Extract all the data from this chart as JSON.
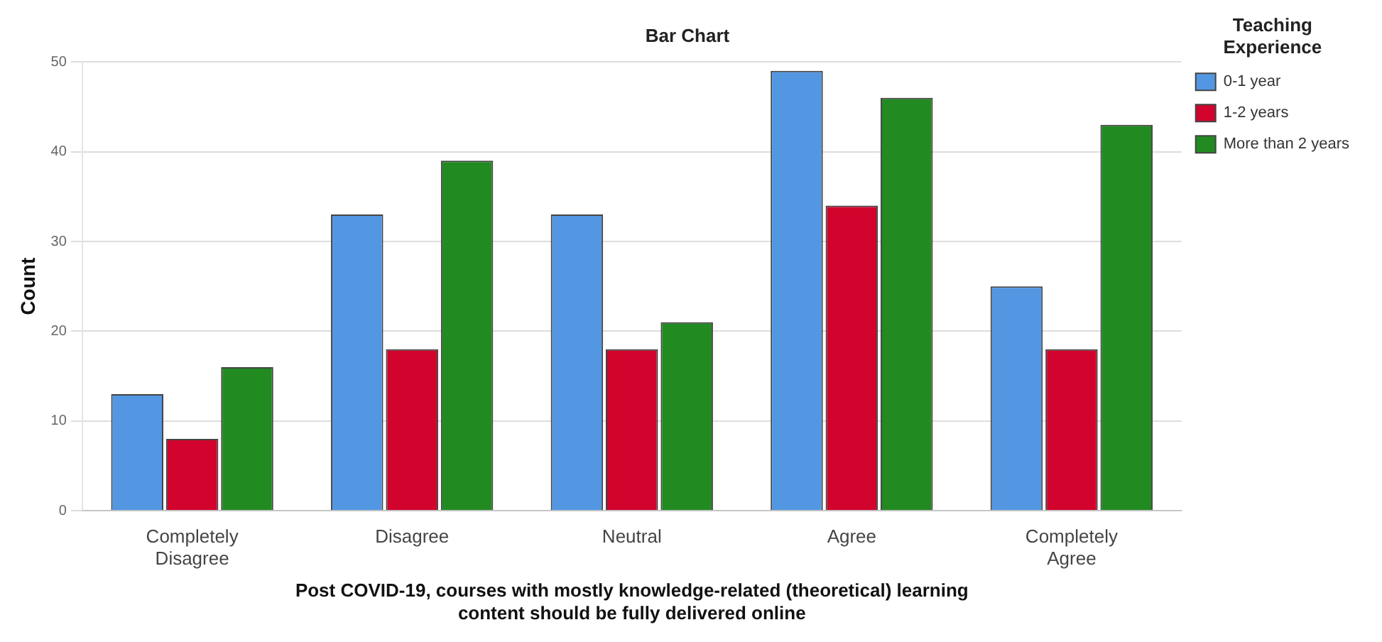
{
  "chart_data": {
    "type": "bar",
    "title": "Bar Chart",
    "xlabel": "Post COVID-19, courses with mostly knowledge-related (theoretical) learning content should be fully delivered online",
    "ylabel": "Count",
    "legend_title": "Teaching Experience",
    "categories": [
      "Completely Disagree",
      "Disagree",
      "Neutral",
      "Agree",
      "Completely Agree"
    ],
    "series": [
      {
        "name": "0-1 year",
        "color": "#5397e3",
        "values": [
          13,
          33,
          33,
          49,
          25
        ]
      },
      {
        "name": "1-2 years",
        "color": "#d2042d",
        "values": [
          8,
          18,
          18,
          34,
          18
        ]
      },
      {
        "name": "More than 2 years",
        "color": "#218a21",
        "values": [
          16,
          39,
          21,
          46,
          43
        ]
      }
    ],
    "ylim": [
      0,
      50
    ],
    "yticks": [
      0,
      10,
      20,
      30,
      40,
      50
    ],
    "grid": "y",
    "legend": "top right"
  }
}
